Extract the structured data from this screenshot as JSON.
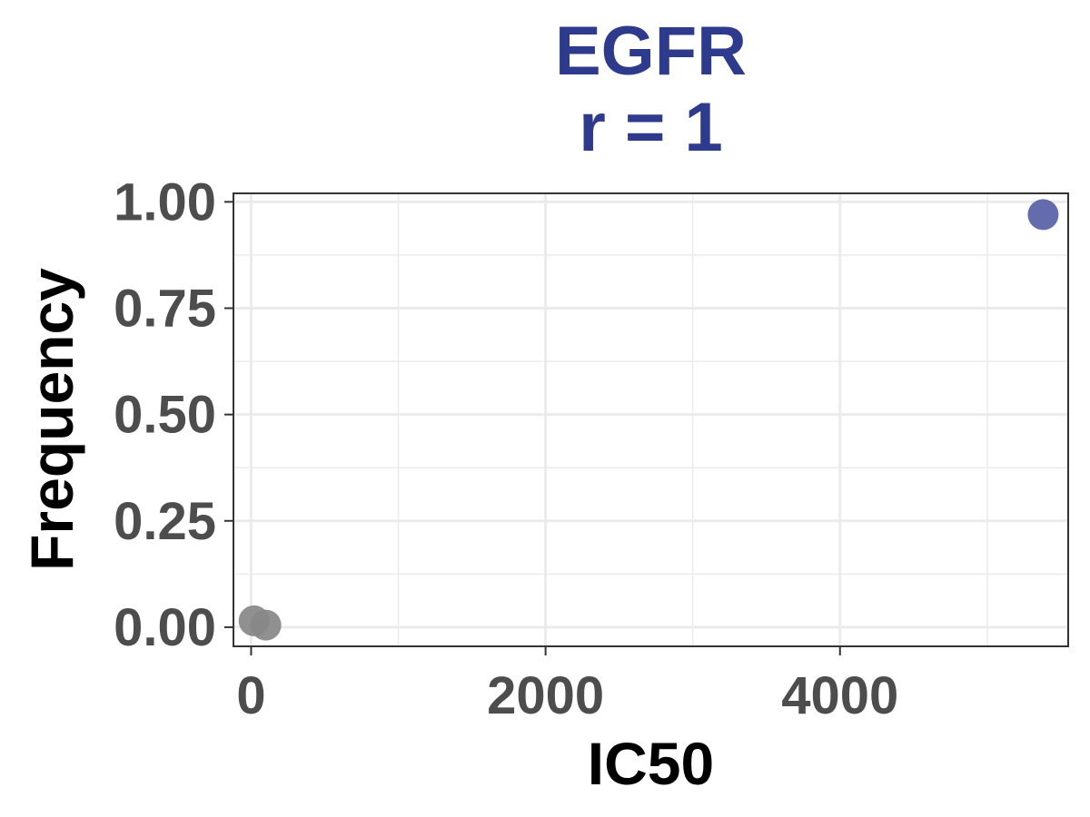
{
  "chart_data": {
    "type": "scatter",
    "title": "EGFR",
    "subtitle": "r = 1",
    "xlabel": "IC50",
    "ylabel": "Frequency",
    "xlim": [
      -120,
      5550
    ],
    "ylim": [
      -0.045,
      1.02
    ],
    "x_ticks": [
      0,
      2000,
      4000
    ],
    "x_tick_labels": [
      "0",
      "2000",
      "4000"
    ],
    "y_ticks": [
      0.0,
      0.25,
      0.5,
      0.75,
      1.0
    ],
    "y_tick_labels": [
      "0.00",
      "0.25",
      "0.50",
      "0.75",
      "1.00"
    ],
    "grid": true,
    "points": [
      {
        "x": 20,
        "y": 0.015,
        "color": "#888888"
      },
      {
        "x": 100,
        "y": 0.005,
        "color": "#888888"
      },
      {
        "x": 5380,
        "y": 0.97,
        "color": "#5961a8"
      }
    ],
    "colors": {
      "title": "#2e3a8c",
      "highlight_point": "#5961a8",
      "other_points": "#888888",
      "tick_text": "#4d4d4d",
      "grid": "#ebebeb",
      "panel_border": "#333333"
    }
  }
}
